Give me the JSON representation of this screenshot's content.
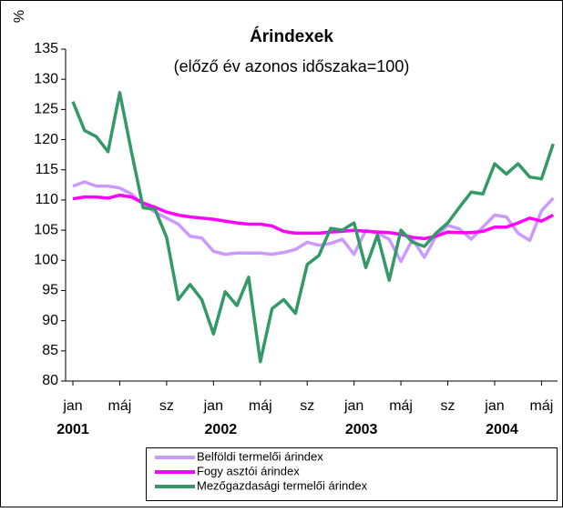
{
  "chart_data": {
    "type": "line",
    "title": "Árindexek",
    "subtitle": "(előző év azonos időszaka=100)",
    "y_label": "%",
    "categories": [
      "jan",
      null,
      null,
      null,
      "máj",
      null,
      null,
      null,
      "sz",
      null,
      null,
      null,
      "jan",
      null,
      null,
      null,
      "máj",
      null,
      null,
      null,
      "sz",
      null,
      null,
      null,
      "jan",
      null,
      null,
      null,
      "máj",
      null,
      null,
      null,
      "sz",
      null,
      null,
      null,
      "jan",
      null,
      null,
      null,
      "máj",
      null
    ],
    "years": [
      "2001",
      "2002",
      "2003",
      "2004"
    ],
    "series": [
      {
        "name": "Belföldi termelői árindex",
        "color": "#cc99ff",
        "values": [
          112.3,
          113,
          112.3,
          112.3,
          112,
          111,
          109.3,
          108,
          107,
          106,
          104,
          103.7,
          101.5,
          101,
          101.2,
          101.2,
          101.2,
          101,
          101.3,
          101.8,
          103,
          102.5,
          102.8,
          103.5,
          101,
          105,
          104.5,
          103.5,
          99.8,
          103.5,
          100.5,
          104,
          105.8,
          105.2,
          103.5,
          105.5,
          107.5,
          107.2,
          104.5,
          103.3,
          108.2,
          110.3
        ]
      },
      {
        "name": "Fogy asztói árindex",
        "color": "#ff00ff",
        "values": [
          110.2,
          110.5,
          110.5,
          110.3,
          110.8,
          110.5,
          109.5,
          108.8,
          108,
          107.5,
          107.2,
          107,
          106.8,
          106.5,
          106.2,
          106,
          106,
          105.7,
          104.8,
          104.5,
          104.5,
          104.5,
          104.7,
          104.8,
          105,
          104.8,
          104.7,
          104.6,
          104.3,
          103.8,
          103.6,
          104,
          104.7,
          104.6,
          104.6,
          104.8,
          105.5,
          105.5,
          106.2,
          107,
          106.5,
          107.5
        ]
      },
      {
        "name": "Mezőgazdasági termelői árindex",
        "color": "#339966",
        "values": [
          126.3,
          121.5,
          120.5,
          118,
          127.8,
          118,
          108.7,
          108.5,
          103.8,
          93.5,
          96,
          93.5,
          87.8,
          94.8,
          92.5,
          97.2,
          83.2,
          92,
          93.5,
          91.2,
          99.3,
          100.8,
          105.3,
          105,
          106.2,
          98.8,
          104.2,
          96.7,
          105,
          103,
          102.3,
          104.5,
          106.2,
          108.8,
          111.3,
          111,
          116,
          114.3,
          116,
          113.8,
          113.5,
          119.3
        ]
      }
    ],
    "ylim": [
      80,
      135
    ],
    "yticks": [
      80,
      85,
      90,
      95,
      100,
      105,
      110,
      115,
      120,
      125,
      130,
      135
    ],
    "grid": false
  }
}
